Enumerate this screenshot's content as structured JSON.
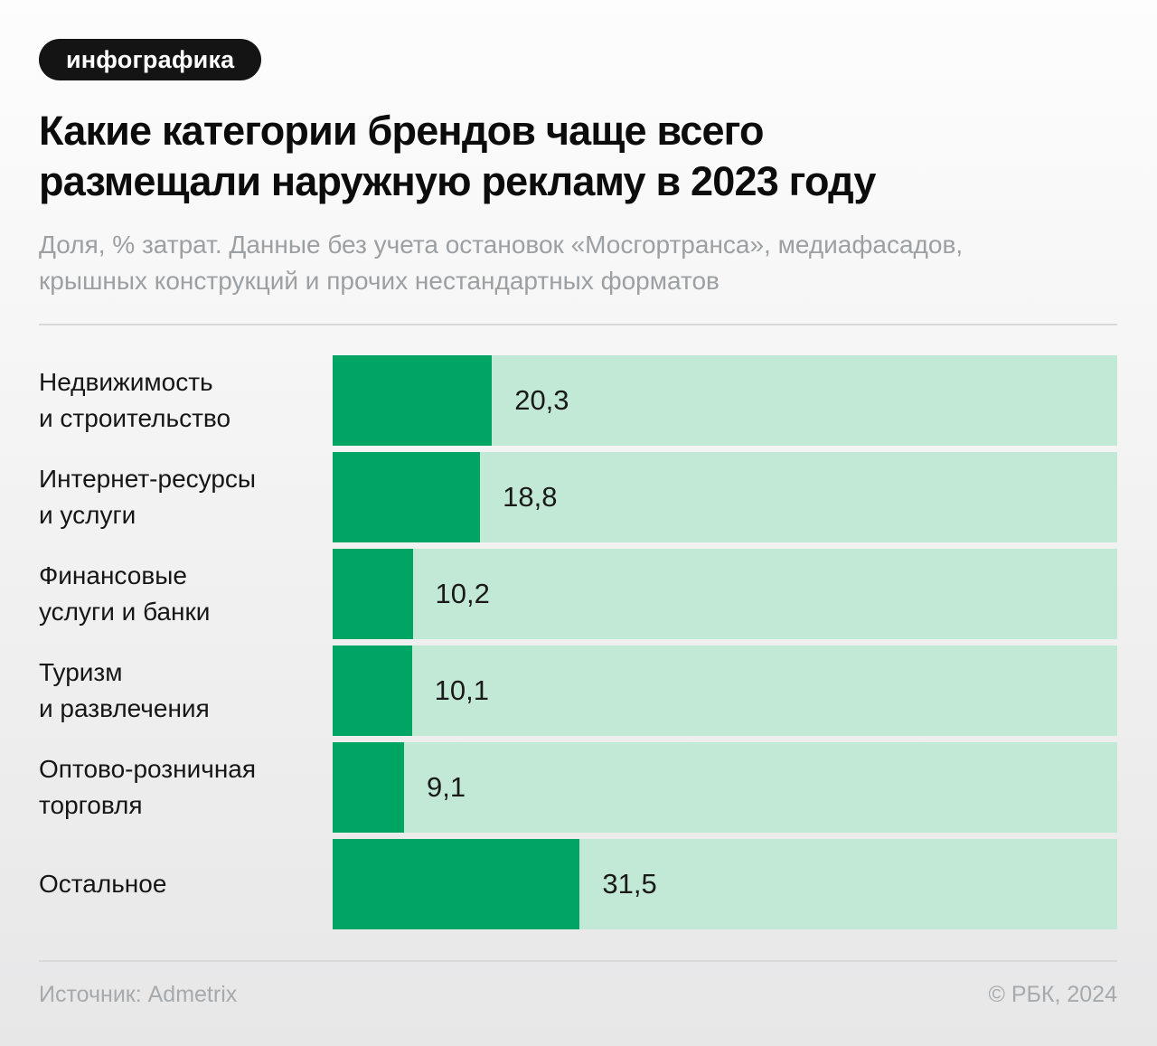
{
  "badge": {
    "label": "инфографика"
  },
  "header": {
    "title_line1": "Какие категории брендов чаще всего",
    "title_line2": "размещали наружную рекламу в 2023 году",
    "subtitle_line1": "Доля, % затрат. Данные без учета остановок «Мосгортранса», медиафасадов,",
    "subtitle_line2": "крышных конструкций и прочих нестандартных форматов"
  },
  "chart_data": {
    "type": "bar",
    "orientation": "horizontal",
    "title": "Какие категории брендов чаще всего размещали наружную рекламу в 2023 году",
    "subtitle": "Доля, % затрат. Данные без учета остановок «Мосгортранса», медиафасадов, крышных конструкций и прочих нестандартных форматов",
    "unit": "% затрат",
    "xlim": [
      0,
      100
    ],
    "grid": false,
    "legend": false,
    "categories": [
      [
        "Недвижимость",
        "и строительство"
      ],
      [
        "Интернет-ресурсы",
        "и услуги"
      ],
      [
        "Финансовые",
        "услуги и банки"
      ],
      [
        "Туризм",
        "и развлечения"
      ],
      [
        "Оптово-розничная",
        "торговля"
      ],
      [
        "Остальное"
      ]
    ],
    "values": [
      20.3,
      18.8,
      10.2,
      10.1,
      9.1,
      31.5
    ],
    "value_labels": [
      "20,3",
      "18,8",
      "10,2",
      "10,1",
      "9,1",
      "31,5"
    ],
    "colors": {
      "bar": "#00a564",
      "track": "#c2e8d6"
    }
  },
  "footer": {
    "source": "Источник: Admetrix",
    "copyright": "© РБК, 2024"
  }
}
